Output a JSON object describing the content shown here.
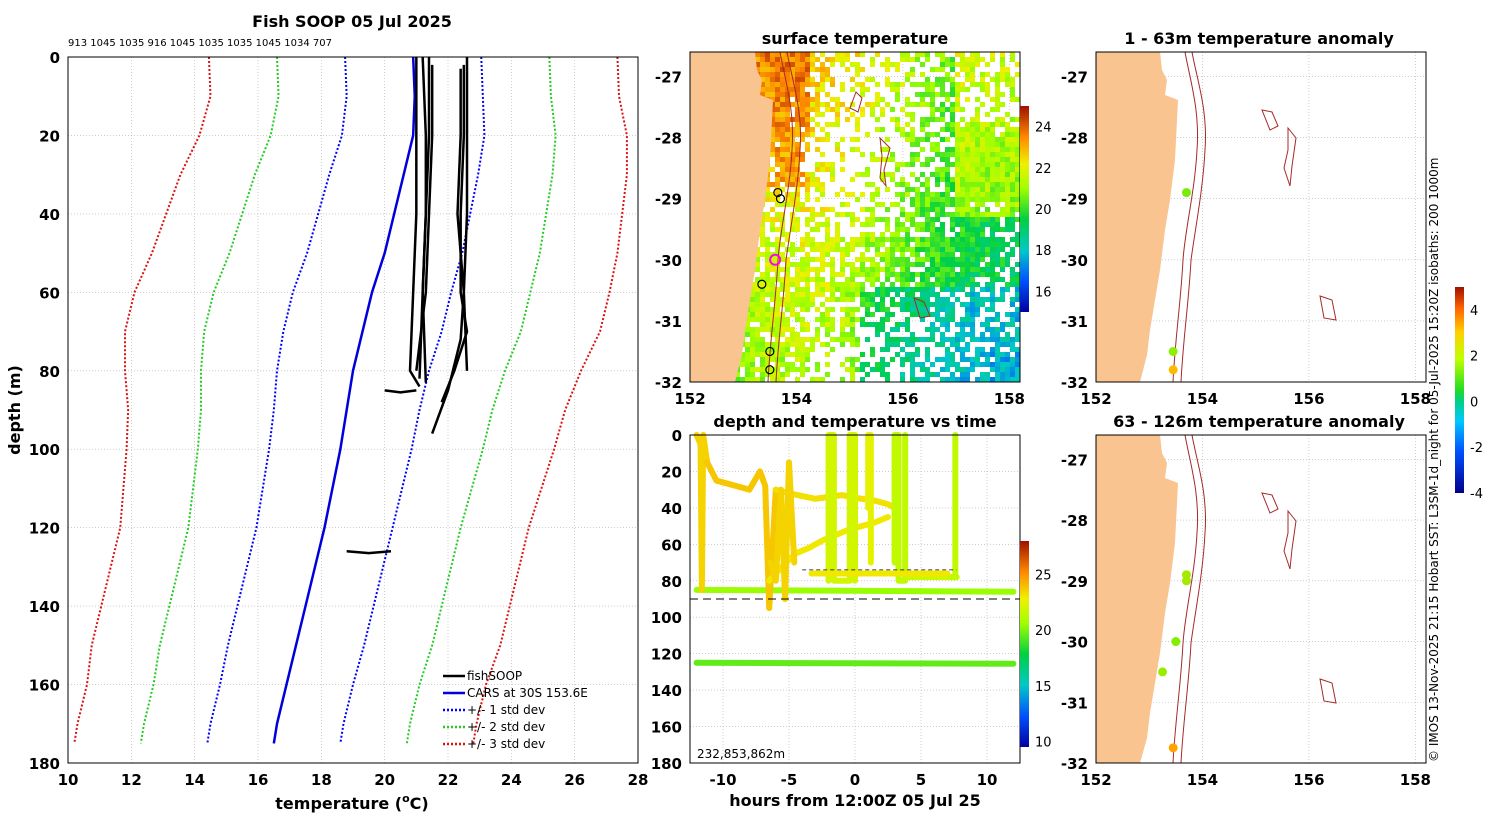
{
  "page": {
    "title": "Fish SOOP 05 Jul 2025",
    "codes": "913 1045 1035 916 1045 1035 1035 1045 1034 707",
    "side_label": "© IMOS 13-Nov-2025 21:15 Hobart SST: L3SM-1d_night for 05-Jul-2025 15:20Z isobaths: 200  1000m"
  },
  "colors": {
    "land": "#f9c48f",
    "cars": "#0000dd",
    "std1": "#0000ff",
    "std2": "#22cc22",
    "std3": "#dd1111",
    "grid": "#b0b0b0",
    "isobath": "#a52a2a",
    "sonde": "#ff00ff"
  },
  "chart_data": [
    {
      "type": "line",
      "id": "profile",
      "title": "",
      "xlabel": "temperature (",
      "xlabel_sup": "o",
      "xlabel_unit": "C)",
      "ylabel": "depth (m)",
      "xlim": [
        10,
        28
      ],
      "ylim": [
        180,
        0
      ],
      "xticks": [
        10,
        12,
        14,
        16,
        18,
        20,
        22,
        24,
        26,
        28
      ],
      "yticks": [
        0,
        20,
        40,
        60,
        80,
        100,
        120,
        140,
        160,
        180
      ],
      "legend": [
        {
          "label": "fishSOOP",
          "key": "fish"
        },
        {
          "label": "CARS at 30S 153.6E",
          "key": "cars"
        },
        {
          "label": "+/- 1 std dev",
          "key": "std1"
        },
        {
          "label": "+/- 2 std dev",
          "key": "std2"
        },
        {
          "label": "+/- 3 std dev",
          "key": "std3"
        }
      ],
      "cars_depths": [
        0,
        10,
        20,
        30,
        40,
        50,
        60,
        70,
        80,
        90,
        100,
        110,
        120,
        130,
        140,
        150,
        160,
        170,
        175
      ],
      "cars_mean": [
        20.9,
        20.95,
        20.9,
        20.6,
        20.3,
        20.0,
        19.6,
        19.3,
        19.0,
        18.8,
        18.6,
        18.35,
        18.1,
        17.8,
        17.5,
        17.2,
        16.9,
        16.6,
        16.5
      ],
      "cars_std": [
        2.15,
        2.15,
        2.25,
        2.35,
        2.4,
        2.45,
        2.5,
        2.5,
        2.4,
        2.3,
        2.25,
        2.2,
        2.15,
        2.15,
        2.15,
        2.15,
        2.1,
        2.1,
        2.1
      ],
      "fish_series": [
        {
          "depth": [
            0,
            20,
            40,
            60,
            80,
            84
          ],
          "temp": [
            21.0,
            21.0,
            21.0,
            20.9,
            20.8,
            21.1
          ]
        },
        {
          "depth": [
            0,
            20,
            40,
            60,
            82
          ],
          "temp": [
            21.2,
            21.3,
            21.3,
            21.2,
            21.1
          ]
        },
        {
          "depth": [
            0,
            20,
            40,
            60,
            83
          ],
          "temp": [
            21.4,
            21.4,
            21.3,
            21.2,
            21.3
          ]
        },
        {
          "depth": [
            2,
            20,
            40,
            60,
            80
          ],
          "temp": [
            21.5,
            21.5,
            21.4,
            21.3,
            21.0
          ]
        },
        {
          "depth": [
            0,
            20,
            40,
            60,
            80
          ],
          "temp": [
            22.6,
            22.6,
            22.6,
            22.5,
            22.6
          ]
        },
        {
          "depth": [
            2,
            20,
            40,
            60,
            70,
            80,
            88
          ],
          "temp": [
            22.5,
            22.5,
            22.4,
            22.4,
            22.6,
            22.2,
            21.8
          ]
        },
        {
          "depth": [
            3,
            20,
            40,
            60,
            72,
            85,
            96
          ],
          "temp": [
            22.4,
            22.4,
            22.3,
            22.5,
            22.4,
            22.0,
            21.5
          ]
        },
        {
          "depth": [
            85,
            85.5,
            85
          ],
          "temp": [
            20.0,
            20.5,
            21.0
          ]
        },
        {
          "depth": [
            126,
            126.5,
            126
          ],
          "temp": [
            18.8,
            19.5,
            20.2
          ]
        }
      ]
    },
    {
      "type": "heatmap",
      "id": "sst",
      "title": "surface temperature",
      "xlim": [
        152,
        158.2
      ],
      "ylim": [
        -32,
        -26.6
      ],
      "xticks": [
        152,
        154,
        156,
        158
      ],
      "yticks": [
        -27,
        -28,
        -29,
        -30,
        -31,
        -32
      ],
      "colorbar": {
        "range": [
          15,
          25
        ],
        "ticks": [
          16,
          18,
          20,
          22,
          24
        ]
      },
      "stations": [
        {
          "lon": 153.65,
          "lat": -28.9
        },
        {
          "lon": 153.7,
          "lat": -29.0
        },
        {
          "lon": 153.35,
          "lat": -30.4
        },
        {
          "lon": 153.5,
          "lat": -31.5
        },
        {
          "lon": 153.5,
          "lat": -31.8
        }
      ],
      "highlight": {
        "lon": 153.6,
        "lat": -30.0
      }
    },
    {
      "type": "scatter",
      "id": "anom1",
      "title": "1 - 63m temperature anomaly",
      "xlim": [
        152,
        158.2
      ],
      "ylim": [
        -32,
        -26.6
      ],
      "xticks": [
        152,
        154,
        156,
        158
      ],
      "yticks": [
        -27,
        -28,
        -29,
        -30,
        -31,
        -32
      ],
      "points": [
        {
          "lon": 153.7,
          "lat": -28.9,
          "value": 0.8
        },
        {
          "lon": 153.45,
          "lat": -31.5,
          "value": 1.0
        },
        {
          "lon": 153.45,
          "lat": -31.8,
          "value": 2.3
        }
      ]
    },
    {
      "type": "scatter",
      "id": "anom2",
      "title": "63 - 126m temperature anomaly",
      "xlim": [
        152,
        158.2
      ],
      "ylim": [
        -32,
        -26.6
      ],
      "xticks": [
        152,
        154,
        156,
        158
      ],
      "yticks": [
        -27,
        -28,
        -29,
        -30,
        -31,
        -32
      ],
      "points": [
        {
          "lon": 153.7,
          "lat": -28.9,
          "value": 1.2
        },
        {
          "lon": 153.7,
          "lat": -29.0,
          "value": 1.2
        },
        {
          "lon": 153.5,
          "lat": -30.0,
          "value": 0.9
        },
        {
          "lon": 153.25,
          "lat": -30.5,
          "value": 1.1
        },
        {
          "lon": 153.45,
          "lat": -31.75,
          "value": 2.6
        }
      ]
    },
    {
      "type": "scatter",
      "id": "dt",
      "title": "depth and temperature vs time",
      "xlabel": "hours from 12:00Z 05 Jul 25",
      "xlim": [
        -12.5,
        12.5
      ],
      "ylim": [
        180,
        0
      ],
      "xticks": [
        -10,
        -5,
        0,
        5,
        10
      ],
      "yticks": [
        0,
        20,
        40,
        60,
        80,
        100,
        120,
        140,
        160,
        180
      ],
      "colorbar": {
        "range": [
          9.5,
          28
        ],
        "ticks": [
          10,
          15,
          20,
          25
        ]
      },
      "annotation": "232,853,862m",
      "dashed_depth": 90,
      "series": [
        {
          "t": [
            -12.0,
            12.0
          ],
          "d": [
            85,
            86
          ],
          "temp": 20.5
        },
        {
          "t": [
            -12.0,
            12.0
          ],
          "d": [
            125,
            125.5
          ],
          "temp": 19.5
        },
        {
          "t": [
            -12.0,
            -11.7,
            -11.6,
            -11.5,
            -11.2
          ],
          "d": [
            0,
            5,
            85,
            0,
            15
          ],
          "temp": 23.5
        },
        {
          "t": [
            -11.2,
            -10.5,
            -9.0,
            -8.0,
            -7.2,
            -6.8,
            -6.5,
            -6.0
          ],
          "d": [
            15,
            25,
            28,
            30,
            20,
            28,
            95,
            30
          ],
          "temp": 23.8
        },
        {
          "t": [
            -6.0,
            -5.0,
            -3.0,
            -1.0,
            0.5,
            1.5,
            2.5,
            3.0
          ],
          "d": [
            30,
            32,
            35,
            33,
            35,
            36,
            38,
            40
          ],
          "temp": 23.2
        },
        {
          "t": [
            -6.5,
            -5.5,
            -4.5,
            -3.5,
            -2.5,
            -1.5,
            -0.5,
            0.5,
            1.5,
            2.5
          ],
          "d": [
            80,
            72,
            65,
            62,
            58,
            55,
            52,
            50,
            48,
            45
          ],
          "temp": 23.0
        },
        {
          "t": [
            -6.4,
            -6.0,
            -5.6,
            -5.3,
            -5.0,
            -4.6
          ],
          "d": [
            70,
            80,
            30,
            90,
            15,
            70
          ],
          "temp": 23.5
        },
        {
          "t": [
            -2.0,
            -2.0,
            -1.6,
            -1.6,
            -0.4,
            -0.4,
            0.0,
            0.0
          ],
          "d": [
            80,
            0,
            0,
            80,
            80,
            0,
            0,
            80
          ],
          "temp": 22.0
        },
        {
          "t": [
            1.0,
            1.0,
            1.2,
            1.2
          ],
          "d": [
            40,
            0,
            0,
            70
          ],
          "temp": 22.5
        },
        {
          "t": [
            3.0,
            3.0,
            3.3,
            3.3,
            3.8,
            3.8
          ],
          "d": [
            70,
            0,
            0,
            80,
            80,
            0
          ],
          "temp": 21.5
        },
        {
          "t": [
            4.0,
            7.7
          ],
          "d": [
            78,
            78
          ],
          "temp": 21.8
        },
        {
          "t": [
            7.3,
            7.6,
            7.6
          ],
          "d": [
            78,
            78,
            0
          ],
          "temp": 21.5
        },
        {
          "t": [
            -3.3,
            7.0
          ],
          "d": [
            76,
            76
          ],
          "temp": 23.0
        }
      ]
    }
  ]
}
